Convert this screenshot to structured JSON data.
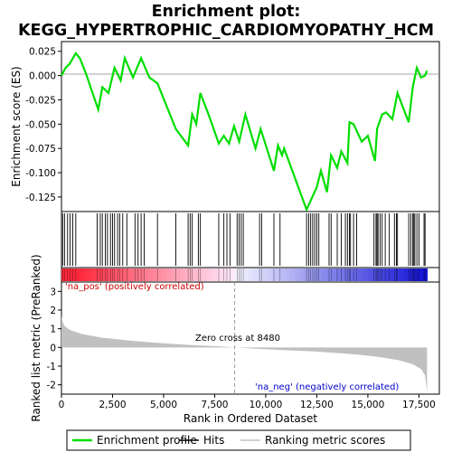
{
  "chart_data": {
    "type": "line",
    "title_line1": "Enrichment plot:",
    "title_line2": "KEGG_HYPERTROPHIC_CARDIOMYOPATHY_HCM",
    "top_panel": {
      "ylabel": "Enrichment score (ES)",
      "ylim": [
        -0.14,
        0.035
      ],
      "yticks": [
        0.025,
        0.0,
        -0.025,
        -0.05,
        -0.075,
        -0.1,
        -0.125
      ],
      "ytick_labels": [
        "0.025",
        "0.000",
        "-0.025",
        "-0.050",
        "-0.075",
        "-0.100",
        "-0.125"
      ],
      "line_color": "#00dd00",
      "es_points": [
        [
          0,
          0.0
        ],
        [
          200,
          0.008
        ],
        [
          400,
          0.012
        ],
        [
          700,
          0.023
        ],
        [
          900,
          0.018
        ],
        [
          1200,
          0.002
        ],
        [
          1800,
          -0.035
        ],
        [
          2000,
          -0.012
        ],
        [
          2300,
          -0.018
        ],
        [
          2600,
          0.008
        ],
        [
          2900,
          -0.005
        ],
        [
          3100,
          0.018
        ],
        [
          3500,
          -0.002
        ],
        [
          3900,
          0.018
        ],
        [
          4300,
          -0.002
        ],
        [
          4700,
          -0.008
        ],
        [
          5600,
          -0.055
        ],
        [
          6200,
          -0.072
        ],
        [
          6400,
          -0.04
        ],
        [
          6600,
          -0.05
        ],
        [
          6800,
          -0.018
        ],
        [
          7200,
          -0.04
        ],
        [
          7700,
          -0.07
        ],
        [
          7950,
          -0.062
        ],
        [
          8200,
          -0.07
        ],
        [
          8450,
          -0.052
        ],
        [
          8700,
          -0.068
        ],
        [
          9000,
          -0.04
        ],
        [
          9500,
          -0.075
        ],
        [
          9750,
          -0.055
        ],
        [
          10400,
          -0.098
        ],
        [
          10600,
          -0.072
        ],
        [
          10800,
          -0.082
        ],
        [
          10900,
          -0.075
        ],
        [
          12000,
          -0.138
        ],
        [
          12500,
          -0.115
        ],
        [
          12700,
          -0.098
        ],
        [
          13000,
          -0.12
        ],
        [
          13200,
          -0.082
        ],
        [
          13500,
          -0.095
        ],
        [
          13700,
          -0.078
        ],
        [
          14000,
          -0.09
        ],
        [
          14100,
          -0.048
        ],
        [
          14300,
          -0.05
        ],
        [
          14700,
          -0.068
        ],
        [
          15000,
          -0.062
        ],
        [
          15350,
          -0.088
        ],
        [
          15450,
          -0.055
        ],
        [
          15700,
          -0.04
        ],
        [
          15900,
          -0.038
        ],
        [
          16200,
          -0.045
        ],
        [
          16450,
          -0.018
        ],
        [
          17000,
          -0.048
        ],
        [
          17200,
          -0.012
        ],
        [
          17400,
          0.008
        ],
        [
          17600,
          -0.002
        ],
        [
          17800,
          0.0
        ],
        [
          17900,
          0.005
        ]
      ]
    },
    "hits": [
      60,
      150,
      300,
      420,
      550,
      700,
      1750,
      1900,
      2000,
      2150,
      2250,
      2400,
      2500,
      2600,
      2750,
      2850,
      3000,
      3200,
      3600,
      3750,
      3900,
      4050,
      4700,
      5600,
      6200,
      6300,
      6400,
      6700,
      6800,
      7700,
      7950,
      8100,
      8250,
      8600,
      8700,
      8800,
      8900,
      9700,
      9800,
      10400,
      10700,
      12000,
      12100,
      12200,
      12300,
      12400,
      12500,
      12600,
      13100,
      13200,
      13500,
      13700,
      13900,
      14000,
      14100,
      14150,
      14300,
      14450,
      15300,
      15400,
      15450,
      15500,
      15600,
      15700,
      15850,
      16050,
      16300,
      16400,
      16450,
      17000,
      17100,
      17200,
      17250,
      17300,
      17400,
      17500,
      17750,
      17800
    ],
    "heatmap": {
      "pos_color": "#ff0000",
      "neg_color": "#0000ff",
      "zero_rank": 8480,
      "max_rank": 17900
    },
    "bottom_panel": {
      "ylabel": "Ranked list metric (PreRanked)",
      "ylim": [
        -2.5,
        3.5
      ],
      "yticks": [
        3,
        2,
        1,
        0,
        -1,
        -2
      ],
      "ytick_labels": [
        "3",
        "2",
        "1",
        "0",
        "-1",
        "-2"
      ],
      "fill_color": "#c0c0c0",
      "metric_profile": [
        [
          0,
          1.7
        ],
        [
          50,
          1.4
        ],
        [
          150,
          1.15
        ],
        [
          400,
          0.95
        ],
        [
          1000,
          0.72
        ],
        [
          2000,
          0.52
        ],
        [
          3500,
          0.35
        ],
        [
          5000,
          0.22
        ],
        [
          6500,
          0.12
        ],
        [
          7500,
          0.07
        ],
        [
          8480,
          0.0
        ],
        [
          9500,
          -0.07
        ],
        [
          11000,
          -0.15
        ],
        [
          12500,
          -0.22
        ],
        [
          13500,
          -0.3
        ],
        [
          14500,
          -0.38
        ],
        [
          15500,
          -0.5
        ],
        [
          16500,
          -0.68
        ],
        [
          17200,
          -0.9
        ],
        [
          17600,
          -1.15
        ],
        [
          17800,
          -1.5
        ],
        [
          17900,
          -2.4
        ]
      ],
      "annotation_pos": "'na_pos' (positively correlated)",
      "annotation_neg": "'na_neg' (negatively correlated)",
      "annotation_zero": "Zero cross at 8480"
    },
    "xlabel": "Rank in Ordered Dataset",
    "xlim": [
      0,
      18500
    ],
    "xticks": [
      0,
      2500,
      5000,
      7500,
      10000,
      12500,
      15000,
      17500
    ],
    "xtick_labels": [
      "0",
      "2,500",
      "5,000",
      "7,500",
      "10,000",
      "12,500",
      "15,000",
      "17,500"
    ],
    "legend": [
      {
        "label": "Enrichment profile",
        "kind": "line",
        "color": "#00dd00"
      },
      {
        "label": "Hits",
        "kind": "line",
        "color": "#000000"
      },
      {
        "label": "Ranking metric scores",
        "kind": "line",
        "color": "#c0c0c0"
      }
    ]
  }
}
